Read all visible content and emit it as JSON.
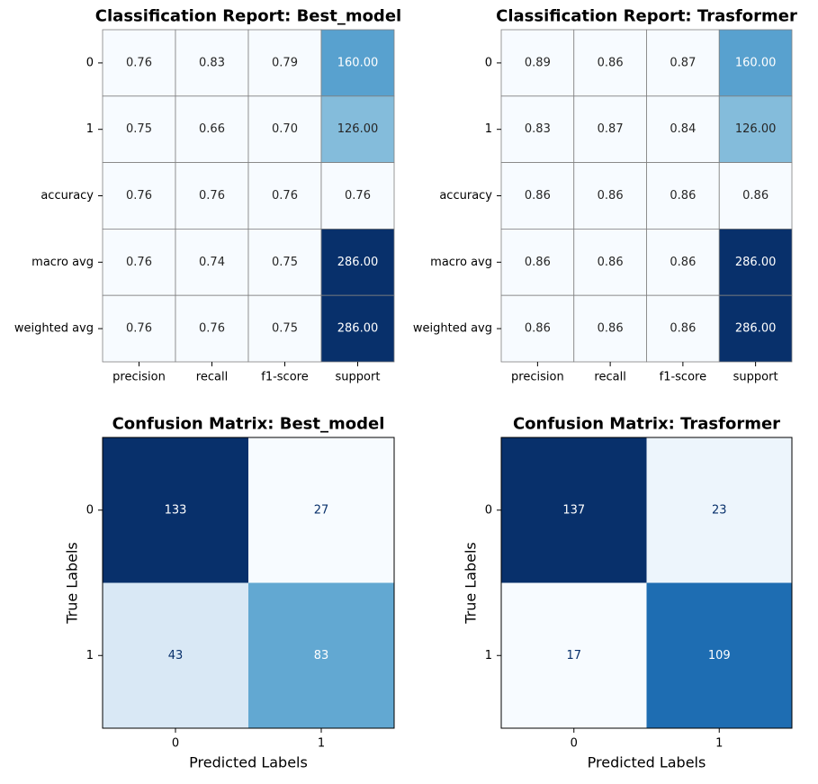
{
  "chart_data": [
    {
      "type": "heatmap",
      "title": "Classification Report: Best_model",
      "rows": [
        "0",
        "1",
        "accuracy",
        "macro avg",
        "weighted avg"
      ],
      "columns": [
        "precision",
        "recall",
        "f1-score",
        "support"
      ],
      "values": [
        [
          0.76,
          0.83,
          0.79,
          160.0
        ],
        [
          0.75,
          0.66,
          0.7,
          126.0
        ],
        [
          0.76,
          0.76,
          0.76,
          0.76
        ],
        [
          0.76,
          0.74,
          0.75,
          286.0
        ],
        [
          0.76,
          0.76,
          0.75,
          286.0
        ]
      ],
      "colormap": "Blues",
      "cell_text_decimals": 2,
      "grid": true,
      "grid_color": "#808080"
    },
    {
      "type": "heatmap",
      "title": "Classification Report: Trasformer",
      "rows": [
        "0",
        "1",
        "accuracy",
        "macro avg",
        "weighted avg"
      ],
      "columns": [
        "precision",
        "recall",
        "f1-score",
        "support"
      ],
      "values": [
        [
          0.89,
          0.86,
          0.87,
          160.0
        ],
        [
          0.83,
          0.87,
          0.84,
          126.0
        ],
        [
          0.86,
          0.86,
          0.86,
          0.86
        ],
        [
          0.86,
          0.86,
          0.86,
          286.0
        ],
        [
          0.86,
          0.86,
          0.86,
          286.0
        ]
      ],
      "colormap": "Blues",
      "cell_text_decimals": 2,
      "grid": true,
      "grid_color": "#808080"
    },
    {
      "type": "heatmap",
      "title": "Confusion Matrix: Best_model",
      "xlabel": "Predicted Labels",
      "ylabel": "True Labels",
      "rows": [
        "0",
        "1"
      ],
      "columns": [
        "0",
        "1"
      ],
      "values": [
        [
          133,
          27
        ],
        [
          43,
          83
        ]
      ],
      "colormap": "Blues",
      "cell_text_decimals": 0,
      "grid": false
    },
    {
      "type": "heatmap",
      "title": "Confusion Matrix: Trasformer",
      "xlabel": "Predicted Labels",
      "ylabel": "True Labels",
      "rows": [
        "0",
        "1"
      ],
      "columns": [
        "0",
        "1"
      ],
      "values": [
        [
          137,
          23
        ],
        [
          17,
          109
        ]
      ],
      "colormap": "Blues",
      "cell_text_decimals": 0,
      "grid": false
    }
  ]
}
